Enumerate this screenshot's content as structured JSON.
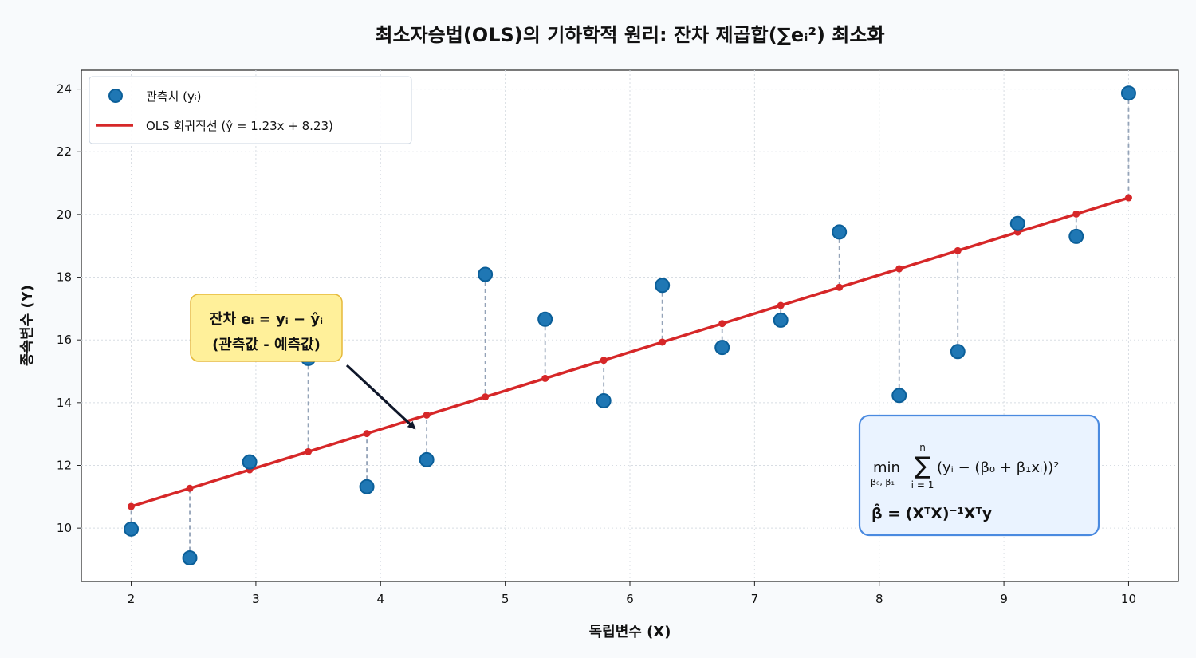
{
  "chart_data": {
    "type": "scatter",
    "title": "최소자승법(OLS)의 기하학적 원리: 잔차 제곱합(∑eᵢ²) 최소화",
    "xlabel": "독립변수 (X)",
    "ylabel": "종속변수 (Y)",
    "xlim": [
      1.6,
      10.4
    ],
    "ylim": [
      8.3,
      24.6
    ],
    "xticks": [
      2,
      3,
      4,
      5,
      6,
      7,
      8,
      9,
      10
    ],
    "yticks": [
      10,
      12,
      14,
      16,
      18,
      20,
      22,
      24
    ],
    "grid": true,
    "legend_position": "top-left",
    "colors": {
      "points": "#1f77b4",
      "point_edge": "#0b5f99",
      "regression_line": "#d62728",
      "residual_lines": "#94a3b8",
      "annotation_box": "#fff09a",
      "formula_box": "#eaf3ff",
      "formula_border": "#4a8ae0"
    },
    "series": [
      {
        "name": "관측치 (yᵢ)",
        "type": "scatter",
        "x": [
          2.0,
          2.47,
          2.95,
          3.42,
          3.89,
          4.37,
          4.84,
          5.32,
          5.79,
          6.26,
          6.74,
          7.21,
          7.68,
          8.16,
          8.63,
          9.11,
          9.58,
          10.0
        ],
        "y": [
          9.97,
          9.05,
          12.11,
          15.41,
          11.32,
          12.18,
          18.09,
          16.66,
          14.06,
          17.74,
          15.76,
          16.63,
          19.44,
          14.23,
          15.63,
          19.71,
          19.3,
          23.87
        ]
      },
      {
        "name": "OLS 회귀직선 (ŷ = 1.23x + 8.23)",
        "type": "line",
        "slope": 1.23,
        "intercept": 8.23
      }
    ],
    "annotations": [
      {
        "line1": "잔차 eᵢ = yᵢ − ŷᵢ",
        "line2": "(관측값 - 예측값)",
        "arrow_to": [
          4.3,
          13.0
        ]
      }
    ],
    "formula_box": {
      "line1_main": "min",
      "line1_sub": "β₀, β₁",
      "line1_sum_top": "n",
      "line1_sum_bottom": "i = 1",
      "line1_expr": "(yᵢ − (β₀ + β₁xᵢ))²",
      "line2": "β̂ = (XᵀX)⁻¹Xᵀy"
    }
  }
}
